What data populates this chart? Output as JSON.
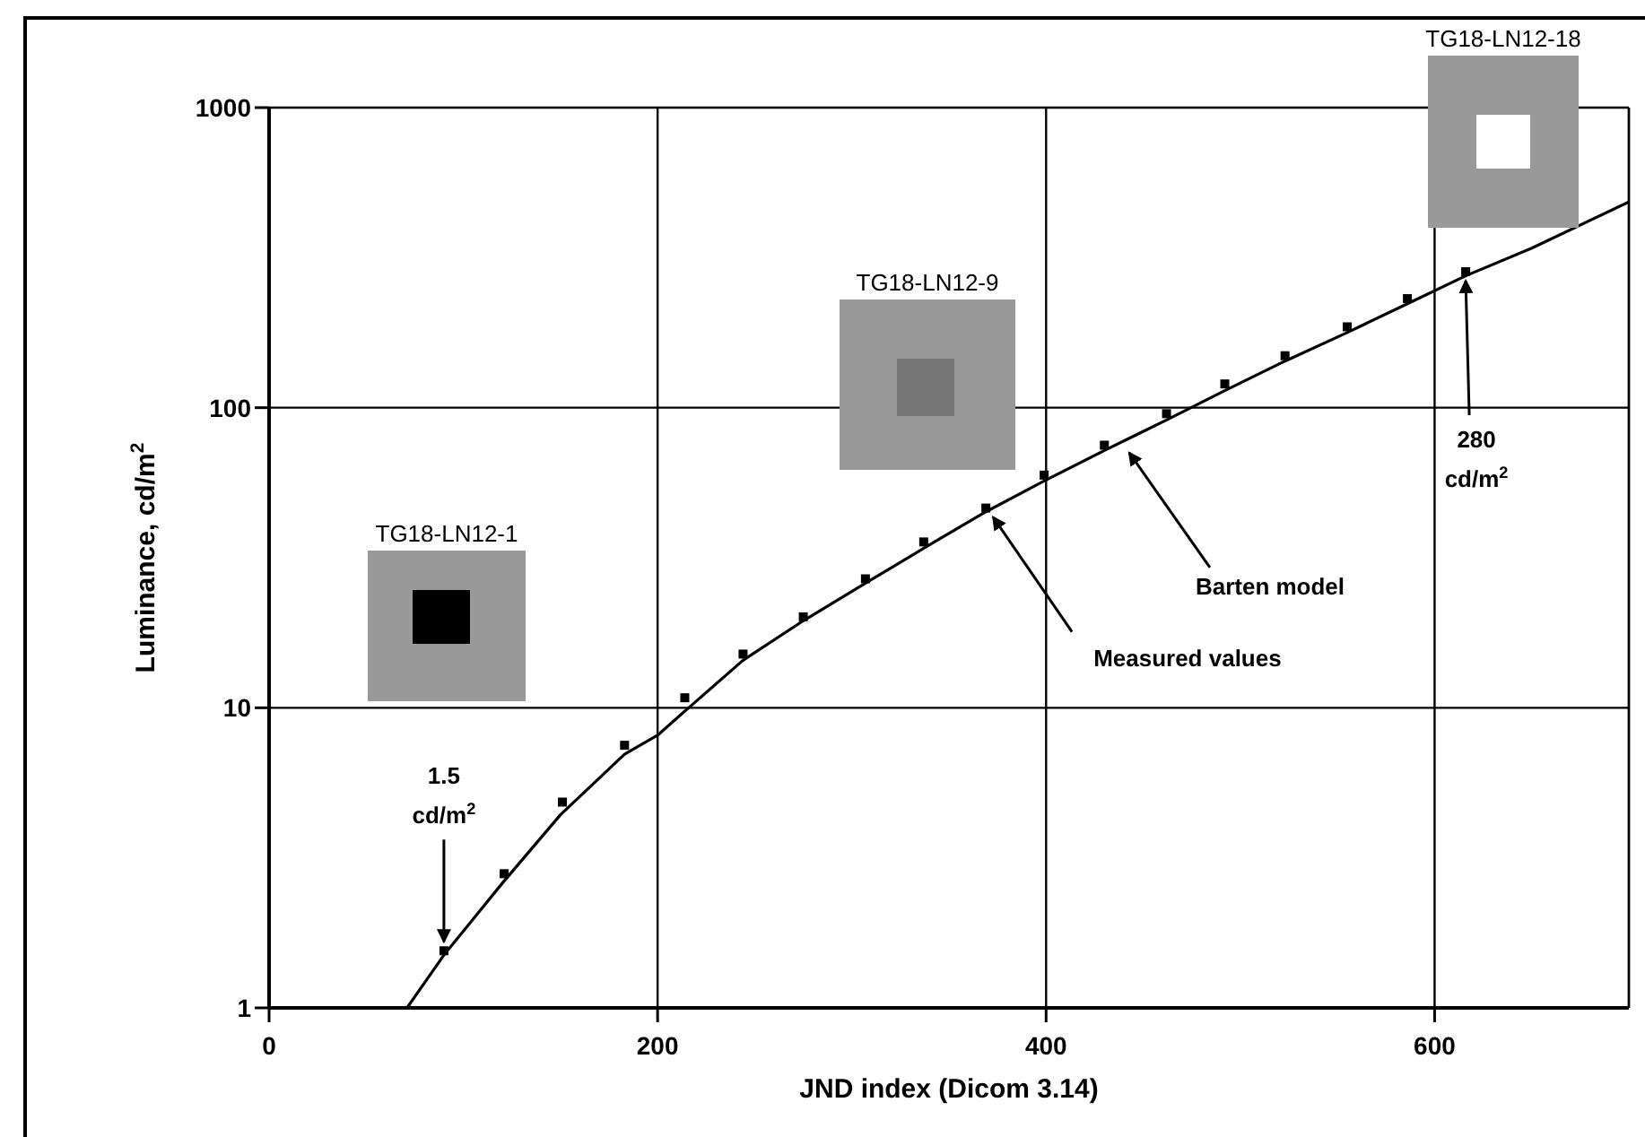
{
  "chart_data": {
    "type": "scatter",
    "xlabel": "JND index (Dicom 3.14)",
    "ylabel": "Luminance, cd/m$^{2}$",
    "xlim": [
      0,
      700
    ],
    "xticks": [
      0,
      200,
      400,
      600
    ],
    "ylim": [
      1,
      1000
    ],
    "yticks": [
      1,
      10,
      100,
      1000
    ],
    "log": "y",
    "grid": true,
    "series": [
      {
        "marker": "square",
        "color": "#000000",
        "x": [
          90,
          121,
          151,
          183,
          214,
          244,
          275,
          307,
          337,
          369,
          399,
          430,
          462,
          492,
          523,
          555,
          586,
          616
        ],
        "values": [
          1.55,
          2.8,
          4.85,
          7.5,
          10.8,
          15.1,
          20.1,
          26.9,
          35.7,
          46.3,
          59.6,
          75,
          95.5,
          120,
          149,
          186,
          231,
          284
        ]
      },
      {
        "type": "line",
        "marker": "none",
        "line_style": "solid",
        "color": "#000000",
        "x": [
          71,
          90,
          120,
          150,
          183,
          200,
          216,
          244,
          275,
          307,
          337,
          369,
          399,
          430,
          462,
          492,
          523,
          555,
          586,
          616,
          650,
          700
        ],
        "values": [
          1,
          1.5,
          2.6,
          4.4,
          7,
          8.1,
          10,
          14.4,
          19.5,
          26,
          34,
          45,
          57,
          72,
          91,
          114,
          143,
          178,
          222,
          275,
          340,
          485
        ]
      }
    ],
    "annotations": [
      {
        "text": "1.5 cd/m$^{2}$",
        "x": 90,
        "y": 1.55
      },
      {
        "text": "280 cd/m$^{2}$",
        "x": 616,
        "y": 284
      },
      {
        "text": "Measured values",
        "x": 369,
        "y": 46.3
      },
      {
        "text": "Barten model",
        "x": 440,
        "y": 78
      },
      "TG18-LN12-1",
      "TG18-LN12-9",
      "TG18-LN12-18"
    ]
  }
}
